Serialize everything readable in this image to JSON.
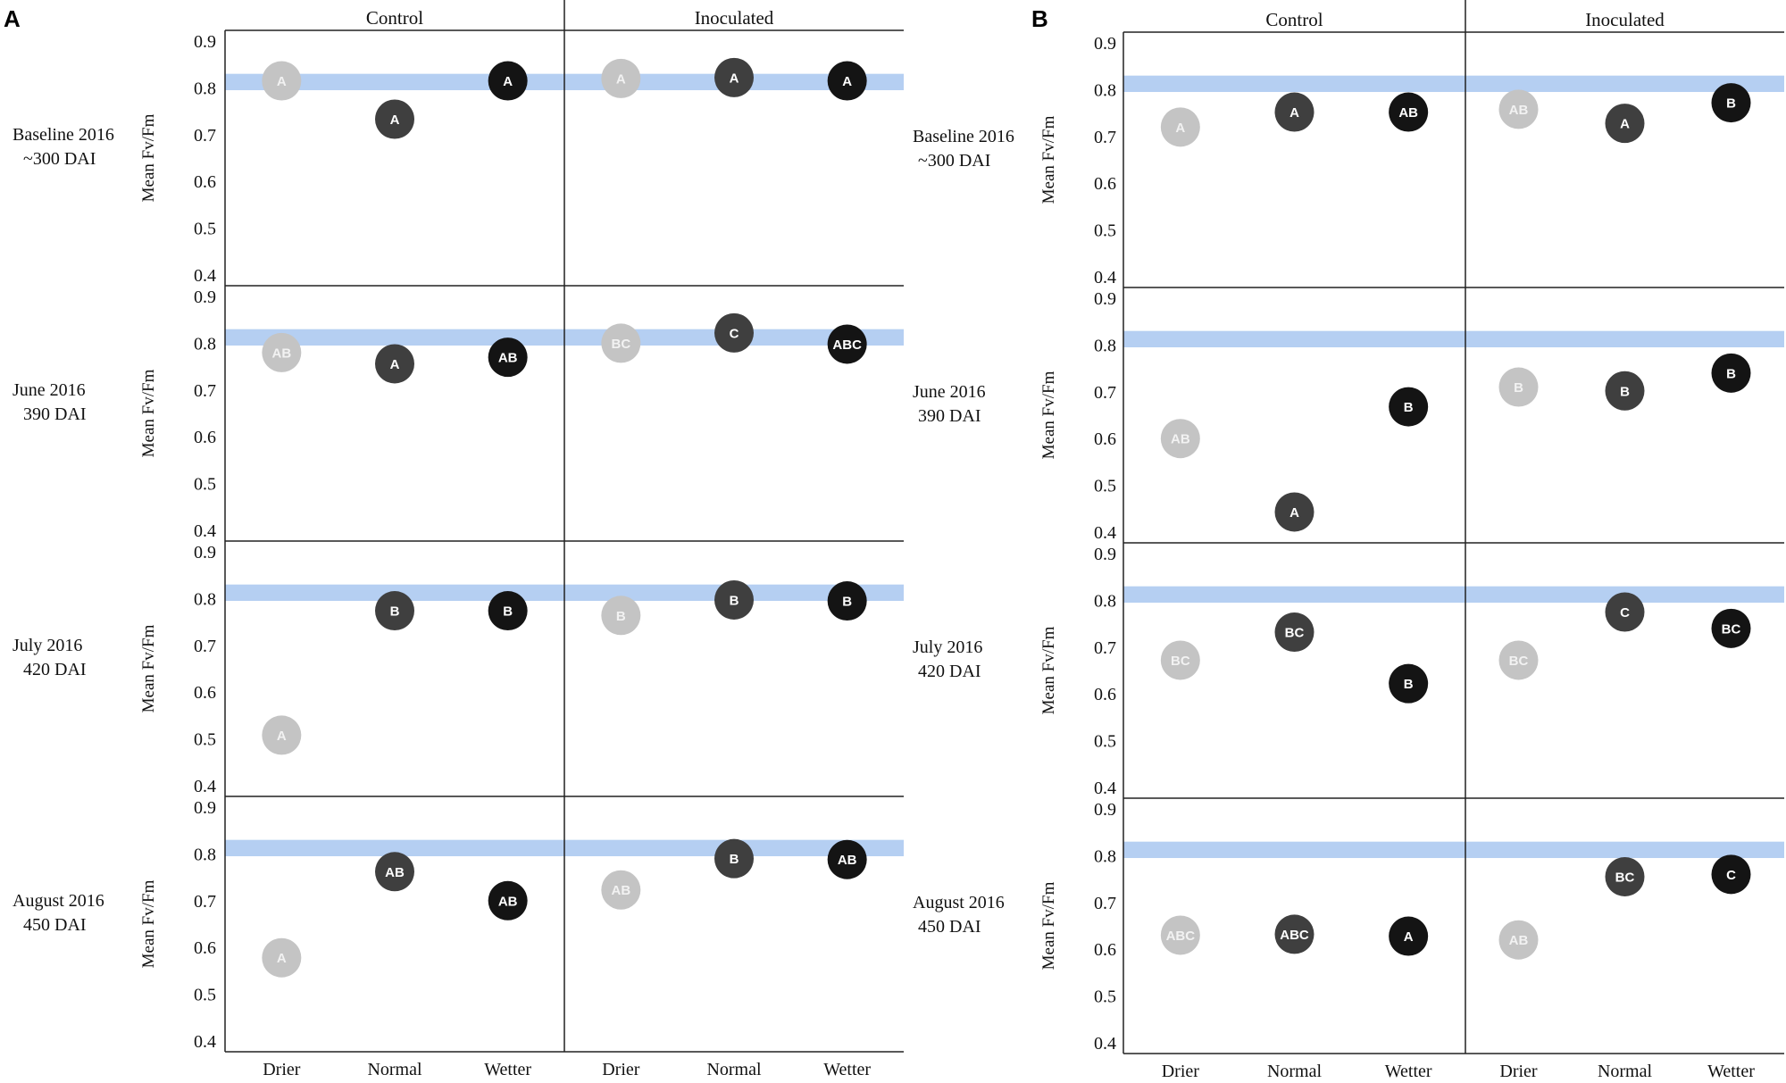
{
  "chart_data": [
    {
      "type": "scatter",
      "panel_label": "A",
      "groups": [
        "Control",
        "Inoculated"
      ],
      "categories": [
        "Drier",
        "Normal",
        "Wetter"
      ],
      "ylabel": "Mean Fv/Fm",
      "ylim": [
        0.4,
        0.9
      ],
      "yticks": [
        "0.9",
        "0.8",
        "0.7",
        "0.6",
        "0.5",
        "0.4"
      ],
      "reference_band": [
        0.795,
        0.83
      ],
      "colors": {
        "Drier": "#c4c4c4",
        "Normal": "#3f3f3f",
        "Wetter": "#141414",
        "band": "#b5cff2",
        "label_on_light": "#f2f2f2",
        "label_on_dark": "#ffffff"
      },
      "rows": [
        {
          "title": "Baseline 2016",
          "subtitle": "~300 DAI",
          "points": [
            {
              "group": "Control",
              "category": "Drier",
              "value": 0.815,
              "letter": "A"
            },
            {
              "group": "Control",
              "category": "Normal",
              "value": 0.733,
              "letter": "A"
            },
            {
              "group": "Control",
              "category": "Wetter",
              "value": 0.815,
              "letter": "A"
            },
            {
              "group": "Inoculated",
              "category": "Drier",
              "value": 0.82,
              "letter": "A"
            },
            {
              "group": "Inoculated",
              "category": "Normal",
              "value": 0.822,
              "letter": "A"
            },
            {
              "group": "Inoculated",
              "category": "Wetter",
              "value": 0.815,
              "letter": "A"
            }
          ]
        },
        {
          "title": "June 2016",
          "subtitle": "390 DAI",
          "points": [
            {
              "group": "Control",
              "category": "Drier",
              "value": 0.78,
              "letter": "AB"
            },
            {
              "group": "Control",
              "category": "Normal",
              "value": 0.756,
              "letter": "A"
            },
            {
              "group": "Control",
              "category": "Wetter",
              "value": 0.77,
              "letter": "AB"
            },
            {
              "group": "Inoculated",
              "category": "Drier",
              "value": 0.8,
              "letter": "BC"
            },
            {
              "group": "Inoculated",
              "category": "Normal",
              "value": 0.822,
              "letter": "C"
            },
            {
              "group": "Inoculated",
              "category": "Wetter",
              "value": 0.798,
              "letter": "ABC"
            }
          ]
        },
        {
          "title": "July 2016",
          "subtitle": "420 DAI",
          "points": [
            {
              "group": "Control",
              "category": "Drier",
              "value": 0.508,
              "letter": "A"
            },
            {
              "group": "Control",
              "category": "Normal",
              "value": 0.774,
              "letter": "B"
            },
            {
              "group": "Control",
              "category": "Wetter",
              "value": 0.774,
              "letter": "B"
            },
            {
              "group": "Inoculated",
              "category": "Drier",
              "value": 0.764,
              "letter": "B"
            },
            {
              "group": "Inoculated",
              "category": "Normal",
              "value": 0.797,
              "letter": "B"
            },
            {
              "group": "Inoculated",
              "category": "Wetter",
              "value": 0.795,
              "letter": "B"
            }
          ]
        },
        {
          "title": "August 2016",
          "subtitle": "450 DAI",
          "points": [
            {
              "group": "Control",
              "category": "Drier",
              "value": 0.578,
              "letter": "A"
            },
            {
              "group": "Control",
              "category": "Normal",
              "value": 0.762,
              "letter": "AB"
            },
            {
              "group": "Control",
              "category": "Wetter",
              "value": 0.7,
              "letter": "AB"
            },
            {
              "group": "Inoculated",
              "category": "Drier",
              "value": 0.723,
              "letter": "AB"
            },
            {
              "group": "Inoculated",
              "category": "Normal",
              "value": 0.79,
              "letter": "B"
            },
            {
              "group": "Inoculated",
              "category": "Wetter",
              "value": 0.788,
              "letter": "AB"
            }
          ]
        }
      ]
    },
    {
      "type": "scatter",
      "panel_label": "B",
      "groups": [
        "Control",
        "Inoculated"
      ],
      "categories": [
        "Drier",
        "Normal",
        "Wetter"
      ],
      "ylabel": "Mean Fv/Fm",
      "ylim": [
        0.4,
        0.9
      ],
      "yticks": [
        "0.9",
        "0.8",
        "0.7",
        "0.6",
        "0.5",
        "0.4"
      ],
      "reference_band": [
        0.795,
        0.83
      ],
      "colors": {
        "Drier": "#c4c4c4",
        "Normal": "#3f3f3f",
        "Wetter": "#141414",
        "band": "#b5cff2",
        "label_on_light": "#f2f2f2",
        "label_on_dark": "#ffffff"
      },
      "rows": [
        {
          "title": "Baseline 2016",
          "subtitle": "~300 DAI",
          "points": [
            {
              "group": "Control",
              "category": "Drier",
              "value": 0.72,
              "letter": "A"
            },
            {
              "group": "Control",
              "category": "Normal",
              "value": 0.752,
              "letter": "A"
            },
            {
              "group": "Control",
              "category": "Wetter",
              "value": 0.752,
              "letter": "AB"
            },
            {
              "group": "Inoculated",
              "category": "Drier",
              "value": 0.758,
              "letter": "AB"
            },
            {
              "group": "Inoculated",
              "category": "Normal",
              "value": 0.728,
              "letter": "A"
            },
            {
              "group": "Inoculated",
              "category": "Wetter",
              "value": 0.772,
              "letter": "B"
            }
          ]
        },
        {
          "title": "June 2016",
          "subtitle": "390 DAI",
          "points": [
            {
              "group": "Control",
              "category": "Drier",
              "value": 0.6,
              "letter": "AB"
            },
            {
              "group": "Control",
              "category": "Normal",
              "value": 0.443,
              "letter": "A"
            },
            {
              "group": "Control",
              "category": "Wetter",
              "value": 0.668,
              "letter": "B"
            },
            {
              "group": "Inoculated",
              "category": "Drier",
              "value": 0.71,
              "letter": "B"
            },
            {
              "group": "Inoculated",
              "category": "Normal",
              "value": 0.702,
              "letter": "B"
            },
            {
              "group": "Inoculated",
              "category": "Wetter",
              "value": 0.74,
              "letter": "B"
            }
          ]
        },
        {
          "title": "July 2016",
          "subtitle": "420 DAI",
          "points": [
            {
              "group": "Control",
              "category": "Drier",
              "value": 0.672,
              "letter": "BC"
            },
            {
              "group": "Control",
              "category": "Normal",
              "value": 0.732,
              "letter": "BC"
            },
            {
              "group": "Control",
              "category": "Wetter",
              "value": 0.622,
              "letter": "B"
            },
            {
              "group": "Inoculated",
              "category": "Drier",
              "value": 0.672,
              "letter": "BC"
            },
            {
              "group": "Inoculated",
              "category": "Normal",
              "value": 0.775,
              "letter": "C"
            },
            {
              "group": "Inoculated",
              "category": "Wetter",
              "value": 0.74,
              "letter": "BC"
            }
          ]
        },
        {
          "title": "August 2016",
          "subtitle": "450 DAI",
          "points": [
            {
              "group": "Control",
              "category": "Drier",
              "value": 0.63,
              "letter": "ABC"
            },
            {
              "group": "Control",
              "category": "Normal",
              "value": 0.632,
              "letter": "ABC"
            },
            {
              "group": "Control",
              "category": "Wetter",
              "value": 0.628,
              "letter": "A"
            },
            {
              "group": "Inoculated",
              "category": "Drier",
              "value": 0.62,
              "letter": "AB"
            },
            {
              "group": "Inoculated",
              "category": "Normal",
              "value": 0.755,
              "letter": "BC"
            },
            {
              "group": "Inoculated",
              "category": "Wetter",
              "value": 0.76,
              "letter": "C"
            }
          ]
        }
      ]
    }
  ]
}
